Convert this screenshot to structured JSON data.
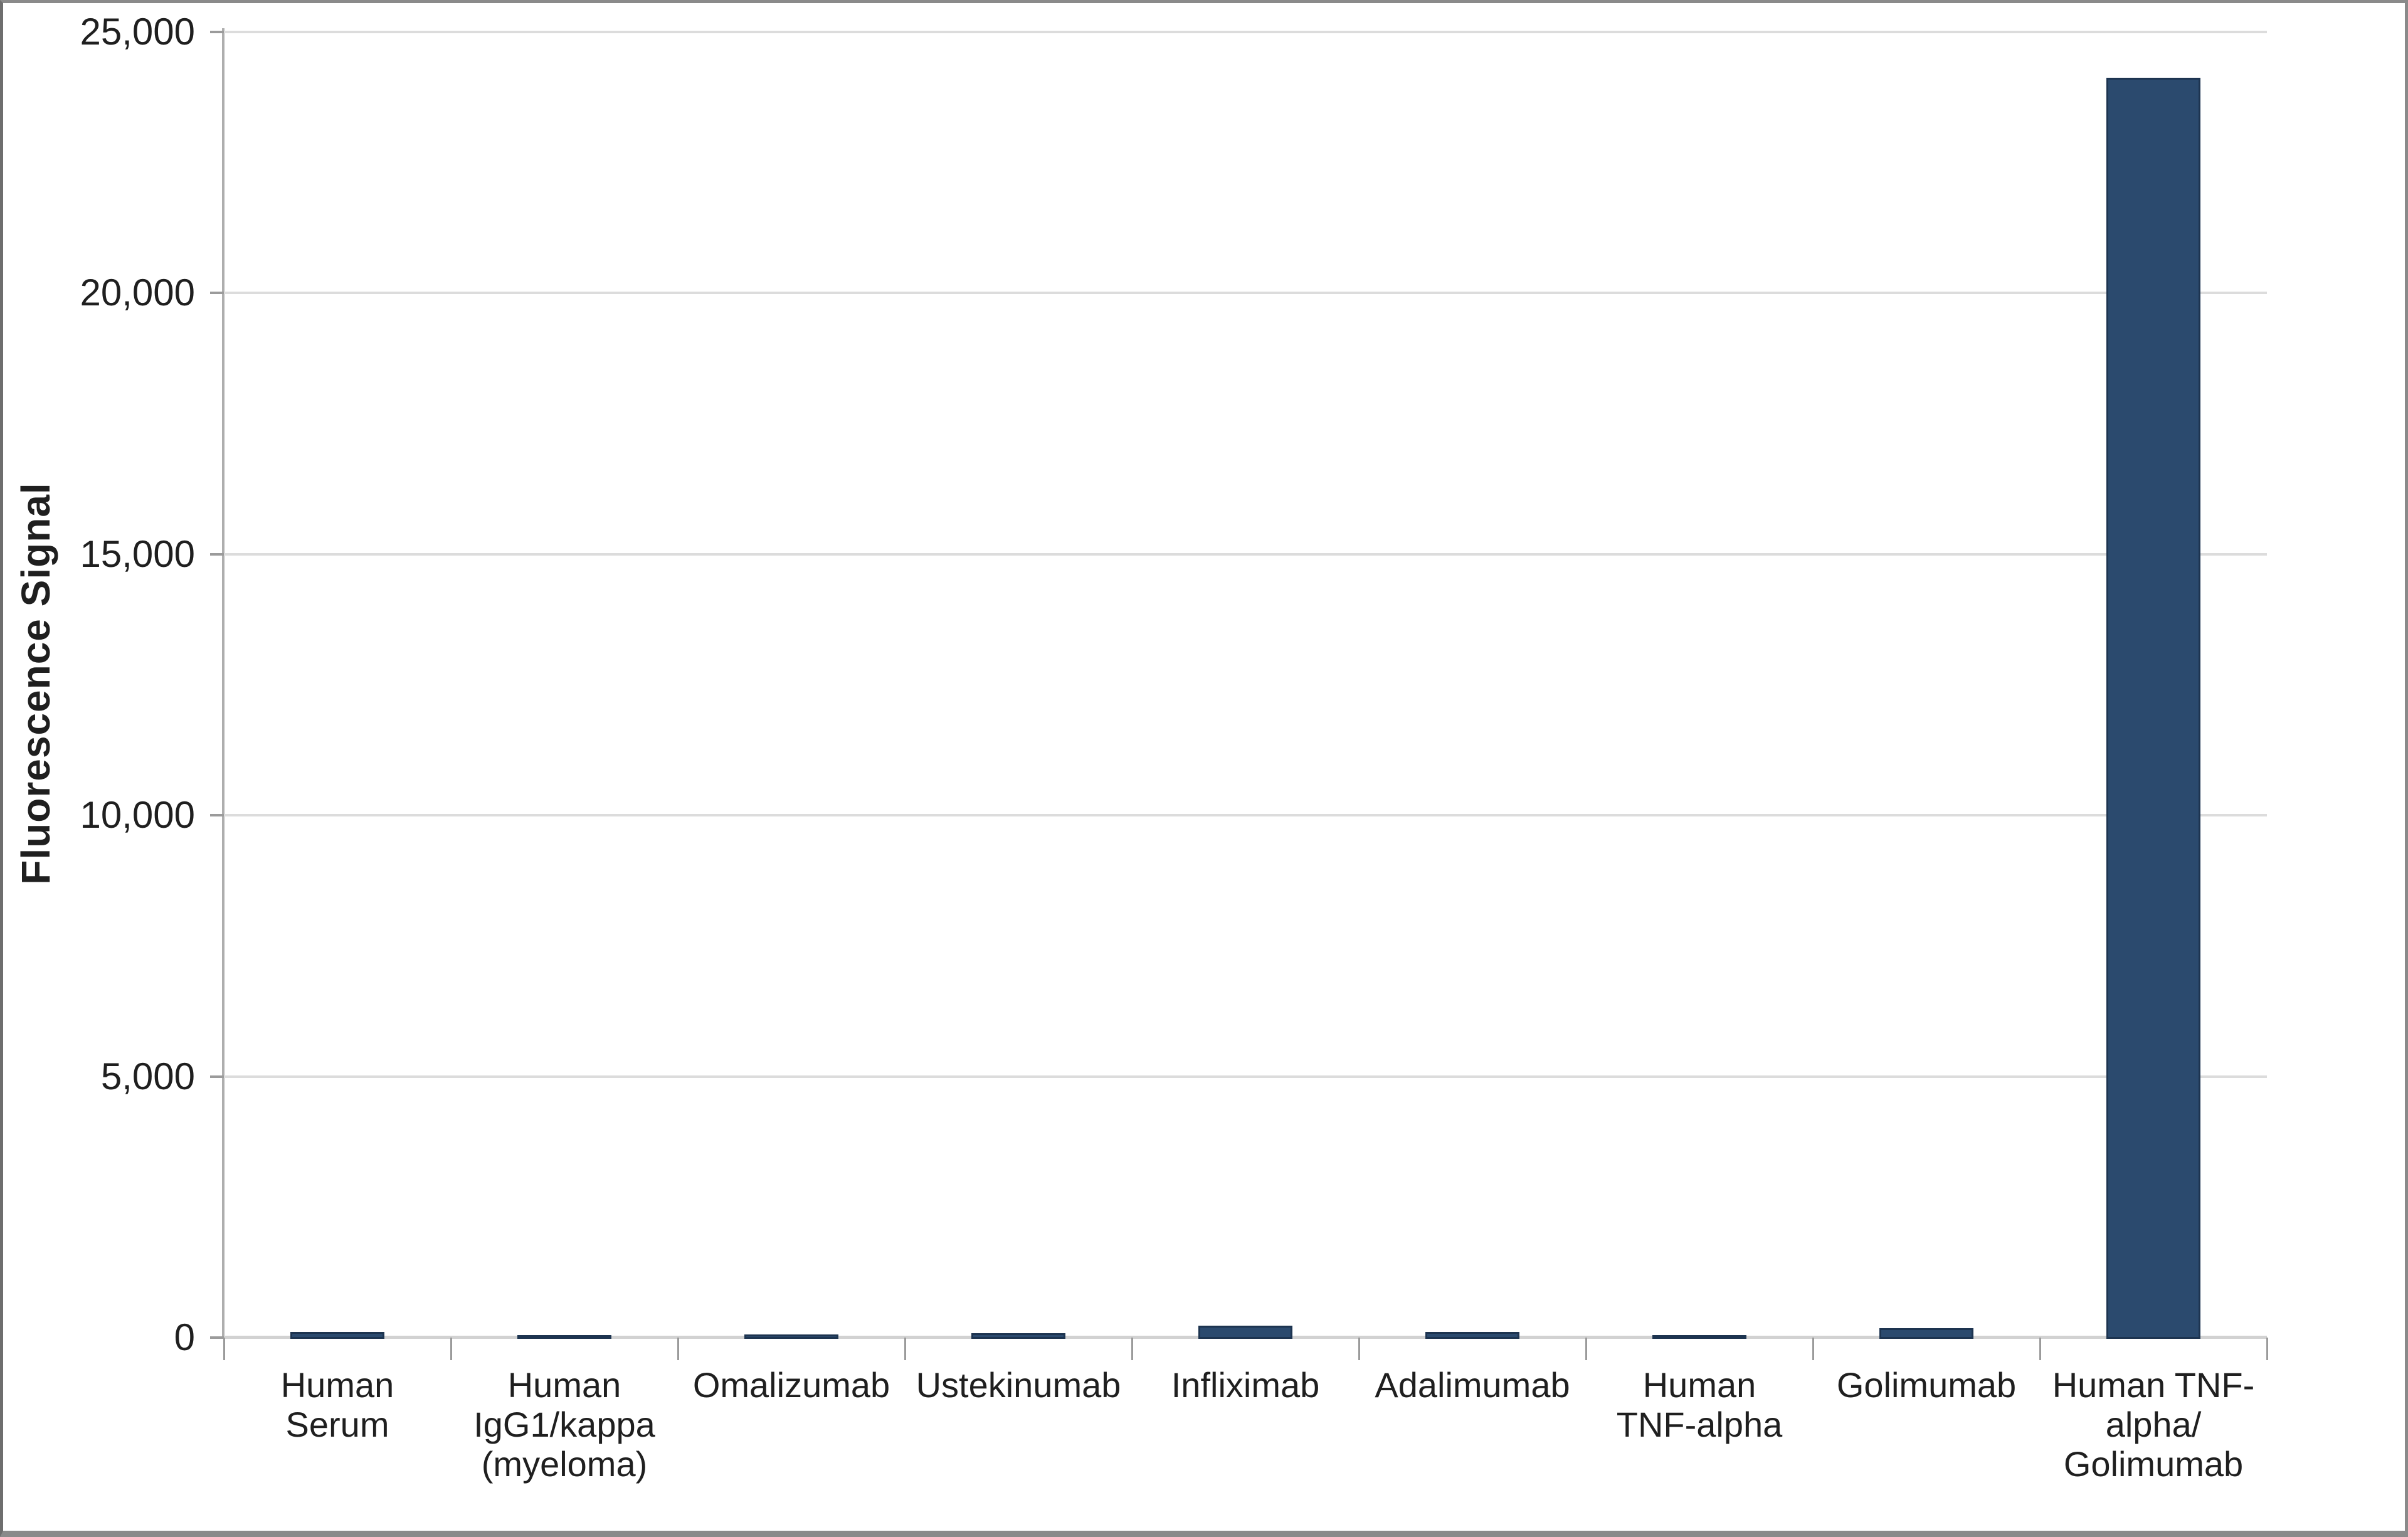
{
  "chart_data": {
    "type": "bar",
    "title": "",
    "xlabel": "",
    "ylabel": "Fluorescence Signal",
    "categories": [
      "Human\nSerum",
      "Human\nIgG1/kappa\n(myeloma)",
      "Omalizumab",
      "Ustekinumab",
      "Infliximab",
      "Adalimumab",
      "Human\nTNF-alpha",
      "Golimumab",
      "Human TNF-\nalpha/\nGolimumab"
    ],
    "values": [
      130,
      45,
      85,
      110,
      250,
      130,
      50,
      205,
      24150
    ],
    "ylim": [
      0,
      25000
    ],
    "yticks": [
      0,
      5000,
      10000,
      15000,
      20000,
      25000
    ],
    "ytick_labels": [
      "0",
      "5,000",
      "10,000",
      "15,000",
      "20,000",
      "25,000"
    ],
    "grid": "horizontal-only",
    "legend": "none",
    "colors": {
      "bar_fill": "#2b4a6e",
      "bar_border": "#1d3450",
      "gridline": "#dcdcdc",
      "zero_line": "#d2d2d2",
      "axis_line": "#aeaeae",
      "tick": "#9b9b9b",
      "text": "#1f1f1f"
    }
  }
}
